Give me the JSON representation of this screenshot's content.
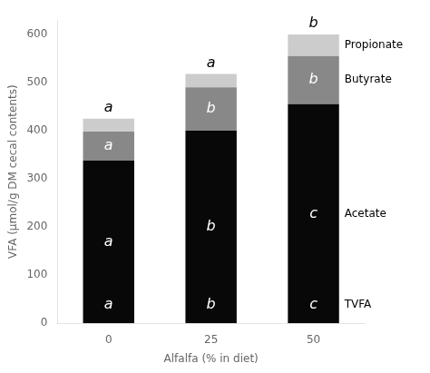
{
  "chart_data": {
    "type": "bar",
    "stacked": true,
    "xlabel": "Alfalfa (% in diet)",
    "ylabel": "VFA (μmol/g DM cecal contents)",
    "categories": [
      "0",
      "25",
      "50"
    ],
    "series": [
      {
        "name": "Acetate",
        "color": "#080808",
        "values": [
          338,
          400,
          455
        ],
        "letters": [
          "a",
          "b",
          "c"
        ]
      },
      {
        "name": "Butyrate",
        "color": "#888888",
        "values": [
          60,
          90,
          100
        ],
        "letters": [
          "a",
          "b",
          "b"
        ]
      },
      {
        "name": "Propionate",
        "color": "#cccccc",
        "values": [
          27,
          28,
          45
        ]
      }
    ],
    "tvfa": {
      "name": "TVFA",
      "letters": [
        "a",
        "b",
        "c"
      ]
    },
    "total_letters": [
      "a",
      "a",
      "b"
    ],
    "ylim": [
      0,
      630
    ],
    "yticks": [
      0,
      100,
      200,
      300,
      400,
      500,
      600
    ],
    "grid": false
  }
}
